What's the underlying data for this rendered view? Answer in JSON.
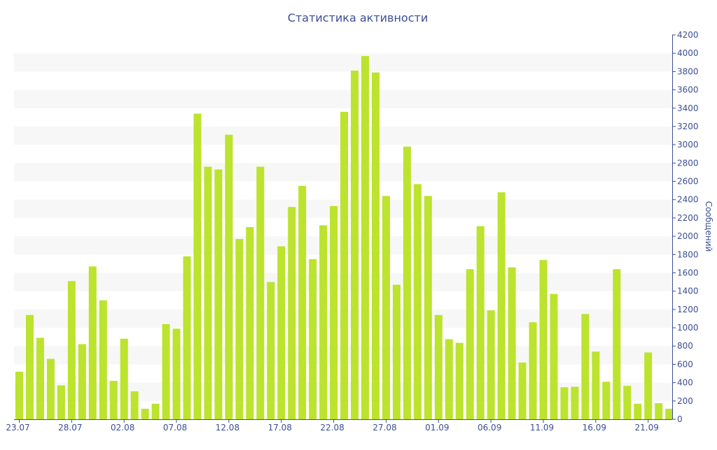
{
  "chart_data": {
    "type": "bar",
    "title": "Статистика активности",
    "xlabel": "",
    "ylabel": "Сообщений",
    "ylim": [
      0,
      4200
    ],
    "y_ticks": [
      0,
      200,
      400,
      600,
      800,
      1000,
      1200,
      1400,
      1600,
      1800,
      2000,
      2200,
      2400,
      2600,
      2800,
      3000,
      3200,
      3400,
      3600,
      3800,
      4000,
      4200
    ],
    "y_axis_position": "right",
    "grid": "alternating horizontal bands",
    "legend": "none",
    "x_tick_labels": [
      "23.07",
      "28.07",
      "02.08",
      "07.08",
      "12.08",
      "17.08",
      "22.08",
      "27.08",
      "01.09",
      "06.09",
      "11.09",
      "16.09",
      "21.09"
    ],
    "x_tick_every": 5,
    "values": [
      520,
      1140,
      890,
      660,
      370,
      1510,
      820,
      1670,
      1300,
      420,
      880,
      305,
      115,
      170,
      1040,
      990,
      1780,
      3340,
      2760,
      2730,
      3110,
      1970,
      2100,
      2760,
      1500,
      1890,
      2320,
      2550,
      1750,
      2120,
      2330,
      3360,
      3810,
      3970,
      3790,
      2440,
      1470,
      2980,
      2570,
      2440,
      1140,
      875,
      835,
      1640,
      2110,
      1190,
      2480,
      1660,
      620,
      1060,
      1740,
      1370,
      350,
      355,
      1150,
      740,
      410,
      1640,
      365,
      170,
      730,
      175,
      115
    ],
    "colors": {
      "bar": "#bce32d",
      "band": "#f7f7f7",
      "text": "#3c4e94",
      "axis": "#3c4e94"
    }
  }
}
